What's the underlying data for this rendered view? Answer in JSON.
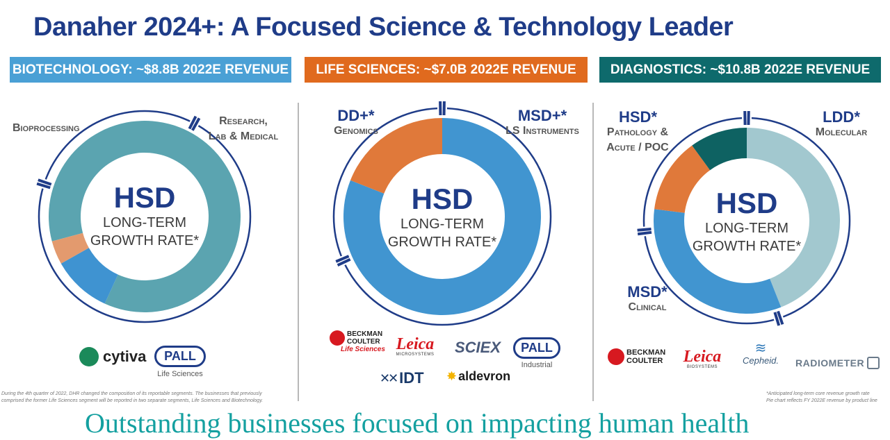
{
  "title": "Danaher 2024+: A Focused Science & Technology Leader",
  "tagline": "Outstanding businesses focused on impacting human health",
  "colors": {
    "title_blue": "#1f3c88",
    "biotech_banner": "#4aa0d5",
    "lifesci_banner": "#e06a1e",
    "diag_banner": "#0e6a6c",
    "teal_tagline": "#14a0a0"
  },
  "panels": {
    "biotech": {
      "banner": "BIOTECHNOLOGY: ~$8.8B 2022E REVENUE",
      "label_bioprocessing": "Bioprocessing",
      "label_research_1": "Research,",
      "label_research_2": "Lab & Medical",
      "center_big": "HSD",
      "center_line1": "LONG-TERM",
      "center_line2": "GROWTH RATE*",
      "logo_cytiva": "cytiva",
      "logo_pall": "PALL",
      "logo_pall_sub": "Life Sciences",
      "footnote_1": "During the 4th quarter of 2022, DHR changed the composition of its reportable segments. The businesses that previously",
      "footnote_2": "comprised the former Life Sciences segment will be reported in two separate segments, Life Sciences and Biotechnology."
    },
    "lifesci": {
      "banner": "LIFE SCIENCES: ~$7.0B 2022E REVENUE",
      "label_dd": "DD+*",
      "label_genomics": "Genomics",
      "label_msd": "MSD+*",
      "label_instruments": "LS Instruments",
      "center_big": "HSD",
      "center_line1": "LONG-TERM",
      "center_line2": "GROWTH RATE*",
      "logo_beckman_1": "BECKMAN",
      "logo_beckman_2": "COULTER",
      "logo_beckman_3": "Life Sciences",
      "logo_leica": "Leica",
      "logo_leica_sub": "MICROSYSTEMS",
      "logo_sciex": "SCIEX",
      "logo_pall": "PALL",
      "logo_pall_sub": "Industrial",
      "logo_idt": "IDT",
      "logo_aldevron": "aldevron"
    },
    "diag": {
      "banner": "DIAGNOSTICS: ~$10.8B 2022E REVENUE",
      "label_hsd": "HSD*",
      "label_pathology_1": "Pathology &",
      "label_pathology_2": "Acute / POC",
      "label_ldd": "LDD*",
      "label_molecular": "Molecular",
      "label_msd": "MSD*",
      "label_clinical": "Clinical",
      "center_big": "HSD",
      "center_line1": "LONG-TERM",
      "center_line2": "GROWTH RATE*",
      "logo_beckman_1": "BECKMAN",
      "logo_beckman_2": "COULTER",
      "logo_leica": "Leica",
      "logo_leica_sub": "BIOSYSTEMS",
      "logo_cepheid": "Cepheid.",
      "logo_radiometer": "RADIOMETER",
      "footnote_1": "*Anticipated long-term core revenue growth rate",
      "footnote_2": "Pie chart reflects FY 2022E revenue by product line"
    }
  },
  "chart_data": [
    {
      "type": "pie",
      "title": "BIOTECHNOLOGY: ~$8.8B 2022E REVENUE",
      "segments": [
        {
          "label": "Bioprocessing",
          "share": 0.86,
          "color": "#5ba4b0"
        },
        {
          "label": "Research, Lab & Medical",
          "share": 0.1,
          "color": "#3f93d1"
        },
        {
          "label": "Research, Lab & Medical",
          "share": 0.04,
          "color": "#e39a6e"
        }
      ]
    },
    {
      "type": "pie",
      "title": "LIFE SCIENCES: ~$7.0B 2022E REVENUE",
      "segments": [
        {
          "label": "LS Instruments",
          "share": 0.81,
          "color": "#4195d0"
        },
        {
          "label": "Genomics",
          "share": 0.19,
          "color": "#e0793a"
        }
      ]
    },
    {
      "type": "pie",
      "title": "DIAGNOSTICS: ~$10.8B 2022E REVENUE",
      "segments": [
        {
          "label": "Molecular",
          "share": 0.44,
          "color": "#a2c8cf"
        },
        {
          "label": "Clinical",
          "share": 0.33,
          "color": "#4195d0"
        },
        {
          "label": "Pathology & Acute / POC",
          "share": 0.13,
          "color": "#e0793a"
        },
        {
          "label": "Pathology & Acute / POC",
          "share": 0.1,
          "color": "#0e6262"
        }
      ]
    }
  ]
}
